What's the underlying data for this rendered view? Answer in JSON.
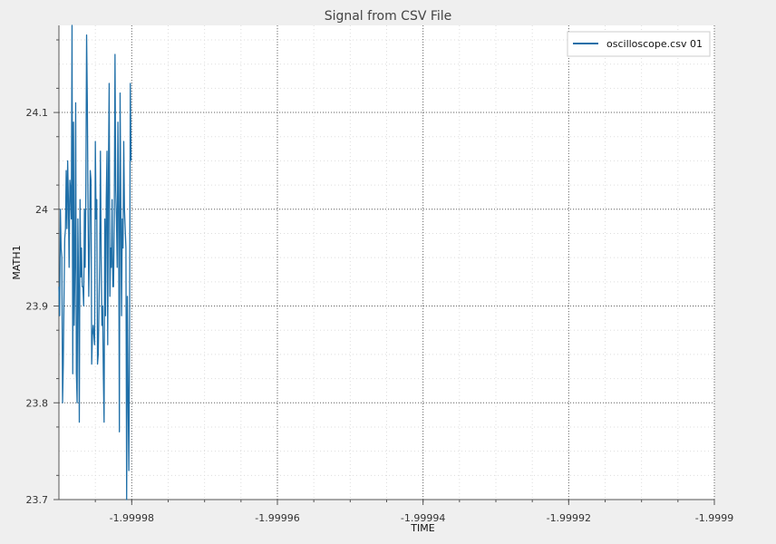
{
  "chart_data": {
    "type": "line",
    "title": "Signal from CSV File",
    "xlabel": "TIME",
    "ylabel": "MATH1",
    "xlim": [
      -1.99999,
      -1.9999
    ],
    "ylim": [
      23.7,
      24.19
    ],
    "x_ticks": [
      -1.99998,
      -1.99996,
      -1.99994,
      -1.99992,
      -1.9999
    ],
    "x_tick_labels": [
      "-1.99998",
      "-1.99996",
      "-1.99994",
      "-1.99992",
      "-1.9999"
    ],
    "y_ticks": [
      23.7,
      23.8,
      23.9,
      24.0,
      24.1
    ],
    "y_tick_labels": [
      "23.7",
      "23.8",
      "23.9",
      "24",
      "24.1"
    ],
    "grid": true,
    "legend_position": "top-right",
    "colors": {
      "series": "#1f6fa8",
      "frame": "#999999",
      "grid_major": "#666666",
      "grid_minor": "#dddddd",
      "plot_bg": "#ffffff"
    },
    "series": [
      {
        "name": "oscilloscope.csv 01",
        "x_start": -1.99999,
        "x_step": 1e-07,
        "values": [
          23.92,
          23.89,
          24.0,
          23.96,
          23.95,
          23.8,
          23.84,
          23.91,
          23.97,
          23.98,
          24.04,
          23.98,
          24.05,
          24.01,
          23.94,
          24.03,
          24.02,
          23.99,
          24.19,
          23.83,
          24.09,
          23.88,
          23.94,
          24.11,
          23.83,
          23.8,
          23.99,
          23.92,
          23.78,
          24.01,
          23.93,
          23.96,
          23.92,
          23.92,
          23.9,
          24.0,
          23.94,
          24.02,
          24.18,
          24.11,
          24.0,
          23.91,
          23.96,
          24.04,
          24.03,
          23.84,
          23.87,
          23.88,
          23.87,
          23.86,
          24.07,
          23.99,
          24.01,
          23.84,
          23.85,
          23.9,
          23.95,
          24.06,
          23.95,
          23.88,
          23.9,
          23.83,
          23.78,
          23.99,
          23.89,
          24.01,
          24.06,
          23.86,
          24.04,
          24.13,
          23.91,
          23.96,
          23.94,
          24.01,
          23.92,
          23.92,
          23.99,
          24.16,
          24.02,
          23.99,
          23.94,
          24.09,
          24.0,
          23.77,
          24.12,
          24.0,
          23.89,
          23.99,
          23.96,
          24.07,
          24.0,
          23.98,
          23.96,
          23.7,
          23.91,
          23.81,
          23.73,
          23.87,
          24.13,
          24.05
        ]
      }
    ]
  }
}
